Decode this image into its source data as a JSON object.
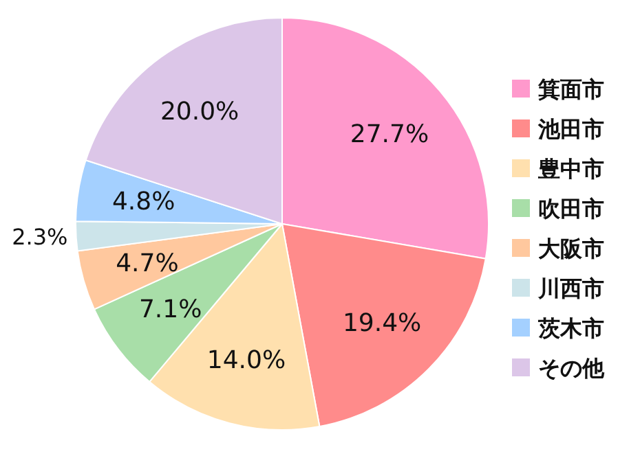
{
  "chart_data": {
    "type": "pie",
    "categories": [
      "箕面市",
      "池田市",
      "豊中市",
      "吹田市",
      "大阪市",
      "川西市",
      "茨木市",
      "その他"
    ],
    "values": [
      27.7,
      19.4,
      14.0,
      7.1,
      4.7,
      2.3,
      4.8,
      20.0
    ],
    "colors": [
      "#ff99cc",
      "#ff8b8b",
      "#ffe0ae",
      "#a8dea8",
      "#ffc89e",
      "#cce4ea",
      "#a4d0ff",
      "#dcc6e8"
    ],
    "value_labels": [
      "27.7%",
      "19.4%",
      "14.0%",
      "7.1%",
      "4.7%",
      "2.3%",
      "4.8%",
      "20.0%"
    ],
    "legend": "right"
  }
}
